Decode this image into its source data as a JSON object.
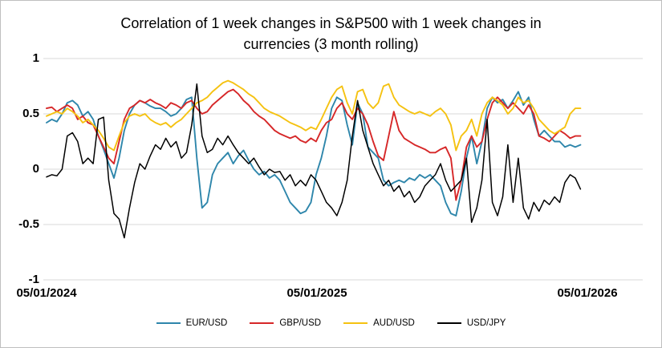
{
  "chart_data": {
    "type": "line",
    "title": "Correlation of 1 week changes in S&P500 with 1 week changes in currencies (3 month rolling)",
    "title_lines": [
      "Correlation of 1 week changes in S&P500 with 1 week changes in",
      "currencies (3 month rolling)"
    ],
    "xlabel": "",
    "ylabel": "",
    "ylim": [
      -1,
      1
    ],
    "grid": "horizontal-light",
    "legend_position": "bottom",
    "x_unit": "weeks since 05/01/2024",
    "yticks": [
      {
        "label": "1",
        "value": 1
      },
      {
        "label": "0.5",
        "value": 0.5
      },
      {
        "label": "0",
        "value": 0
      },
      {
        "label": "-0.5",
        "value": -0.5
      },
      {
        "label": "-1",
        "value": -1
      }
    ],
    "xticks": [
      {
        "label": "05/01/2024",
        "week": 0
      },
      {
        "label": "05/01/2025",
        "week": 52.1
      },
      {
        "label": "05/01/2026",
        "week": 104.3
      }
    ],
    "series": [
      {
        "name": "EUR/USD",
        "color": "#2E86AB",
        "values": [
          0.42,
          0.45,
          0.43,
          0.5,
          0.6,
          0.62,
          0.58,
          0.48,
          0.52,
          0.45,
          0.3,
          0.18,
          0.05,
          -0.08,
          0.1,
          0.35,
          0.5,
          0.58,
          0.62,
          0.6,
          0.57,
          0.55,
          0.55,
          0.52,
          0.48,
          0.5,
          0.55,
          0.63,
          0.65,
          0.1,
          -0.35,
          -0.3,
          -0.05,
          0.05,
          0.1,
          0.15,
          0.05,
          0.12,
          0.17,
          0.08,
          0,
          -0.05,
          -0.02,
          -0.08,
          -0.05,
          -0.1,
          -0.2,
          -0.3,
          -0.35,
          -0.4,
          -0.38,
          -0.3,
          -0.05,
          0.1,
          0.3,
          0.55,
          0.65,
          0.62,
          0.4,
          0.22,
          0.6,
          0.5,
          0.2,
          0.15,
          0.1,
          -0.1,
          -0.15,
          -0.12,
          -0.1,
          -0.12,
          -0.08,
          -0.1,
          -0.05,
          -0.08,
          -0.05,
          -0.1,
          -0.15,
          -0.3,
          -0.4,
          -0.42,
          -0.2,
          0.1,
          0.3,
          0.05,
          0.25,
          0.55,
          0.65,
          0.6,
          0.63,
          0.55,
          0.62,
          0.7,
          0.58,
          0.65,
          0.45,
          0.3,
          0.35,
          0.3,
          0.25,
          0.25,
          0.2,
          0.22,
          0.2,
          0.22
        ]
      },
      {
        "name": "GBP/USD",
        "color": "#D62728",
        "values": [
          0.55,
          0.56,
          0.52,
          0.55,
          0.58,
          0.55,
          0.45,
          0.48,
          0.42,
          0.4,
          0.3,
          0.2,
          0.1,
          0.05,
          0.25,
          0.45,
          0.55,
          0.58,
          0.62,
          0.6,
          0.63,
          0.6,
          0.58,
          0.55,
          0.6,
          0.58,
          0.55,
          0.6,
          0.62,
          0.55,
          0.5,
          0.52,
          0.58,
          0.62,
          0.66,
          0.7,
          0.72,
          0.68,
          0.62,
          0.58,
          0.52,
          0.48,
          0.45,
          0.4,
          0.35,
          0.32,
          0.3,
          0.28,
          0.3,
          0.26,
          0.24,
          0.28,
          0.25,
          0.35,
          0.42,
          0.45,
          0.55,
          0.6,
          0.5,
          0.45,
          0.55,
          0.5,
          0.4,
          0.25,
          0.12,
          0.08,
          0.3,
          0.52,
          0.35,
          0.28,
          0.25,
          0.22,
          0.2,
          0.18,
          0.15,
          0.15,
          0.18,
          0.2,
          0.1,
          -0.28,
          -0.1,
          0.2,
          0.3,
          0.2,
          0.25,
          0.45,
          0.6,
          0.65,
          0.6,
          0.55,
          0.6,
          0.55,
          0.5,
          0.58,
          0.5,
          0.3,
          0.28,
          0.25,
          0.3,
          0.35,
          0.32,
          0.28,
          0.3,
          0.3
        ]
      },
      {
        "name": "AUD/USD",
        "color": "#F5C211",
        "values": [
          0.48,
          0.5,
          0.52,
          0.5,
          0.55,
          0.52,
          0.48,
          0.42,
          0.45,
          0.4,
          0.35,
          0.28,
          0.2,
          0.17,
          0.3,
          0.42,
          0.48,
          0.5,
          0.48,
          0.5,
          0.45,
          0.42,
          0.4,
          0.42,
          0.38,
          0.42,
          0.45,
          0.5,
          0.55,
          0.6,
          0.62,
          0.65,
          0.7,
          0.74,
          0.78,
          0.8,
          0.78,
          0.75,
          0.72,
          0.68,
          0.65,
          0.6,
          0.55,
          0.52,
          0.5,
          0.48,
          0.45,
          0.42,
          0.4,
          0.38,
          0.35,
          0.38,
          0.36,
          0.45,
          0.55,
          0.65,
          0.72,
          0.75,
          0.6,
          0.5,
          0.7,
          0.72,
          0.6,
          0.55,
          0.6,
          0.75,
          0.77,
          0.65,
          0.58,
          0.55,
          0.52,
          0.5,
          0.52,
          0.5,
          0.48,
          0.52,
          0.55,
          0.5,
          0.4,
          0.17,
          0.3,
          0.35,
          0.45,
          0.3,
          0.5,
          0.6,
          0.65,
          0.62,
          0.58,
          0.5,
          0.55,
          0.65,
          0.6,
          0.62,
          0.55,
          0.45,
          0.4,
          0.35,
          0.32,
          0.35,
          0.38,
          0.5,
          0.55,
          0.55
        ]
      },
      {
        "name": "USD/JPY",
        "color": "#000000",
        "values": [
          -0.07,
          -0.05,
          -0.06,
          0,
          0.3,
          0.33,
          0.25,
          0.05,
          0.1,
          0.05,
          0.45,
          0.47,
          -0.1,
          -0.4,
          -0.45,
          -0.62,
          -0.35,
          -0.12,
          0.05,
          0,
          0.12,
          0.22,
          0.18,
          0.28,
          0.2,
          0.25,
          0.1,
          0.15,
          0.4,
          0.77,
          0.3,
          0.15,
          0.18,
          0.28,
          0.22,
          0.3,
          0.22,
          0.15,
          0.1,
          0.05,
          0.1,
          0.02,
          -0.05,
          0,
          -0.03,
          -0.02,
          -0.1,
          -0.05,
          -0.15,
          -0.1,
          -0.15,
          -0.05,
          -0.1,
          -0.2,
          -0.3,
          -0.35,
          -0.42,
          -0.3,
          -0.1,
          0.3,
          0.62,
          0.35,
          0.2,
          0.05,
          -0.05,
          -0.15,
          -0.1,
          -0.2,
          -0.15,
          -0.25,
          -0.2,
          -0.3,
          -0.25,
          -0.15,
          -0.1,
          -0.05,
          0.05,
          -0.1,
          -0.2,
          -0.15,
          -0.1,
          0.1,
          -0.48,
          -0.35,
          -0.1,
          0.45,
          -0.3,
          -0.42,
          -0.25,
          0.22,
          -0.3,
          0.1,
          -0.35,
          -0.45,
          -0.3,
          -0.38,
          -0.28,
          -0.32,
          -0.25,
          -0.3,
          -0.12,
          -0.05,
          -0.08,
          -0.18
        ]
      }
    ]
  }
}
